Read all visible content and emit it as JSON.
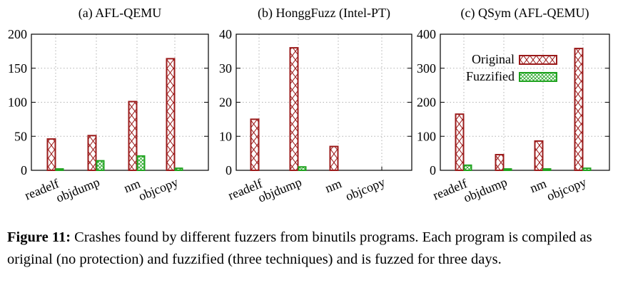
{
  "chart_data": [
    {
      "type": "bar",
      "title": "(a) AFL-QEMU",
      "categories": [
        "readelf",
        "objdump",
        "nm",
        "objcopy"
      ],
      "ylim": [
        0,
        200
      ],
      "yticks": [
        "0",
        "50",
        "100",
        "150",
        "200"
      ],
      "series": [
        {
          "name": "Original",
          "values": [
            46,
            51,
            101,
            164
          ]
        },
        {
          "name": "Fuzzified",
          "values": [
            2,
            14,
            21,
            3
          ]
        }
      ],
      "grid": true
    },
    {
      "type": "bar",
      "title": "(b) HonggFuzz (Intel-PT)",
      "categories": [
        "readelf",
        "objdump",
        "nm",
        "objcopy"
      ],
      "ylim": [
        0,
        40
      ],
      "yticks": [
        "0",
        "10",
        "20",
        "30",
        "40"
      ],
      "series": [
        {
          "name": "Original",
          "values": [
            15,
            36,
            7,
            0
          ]
        },
        {
          "name": "Fuzzified",
          "values": [
            0,
            1,
            0,
            0
          ]
        }
      ],
      "grid": true
    },
    {
      "type": "bar",
      "title": "(c) QSym (AFL-QEMU)",
      "categories": [
        "readelf",
        "objdump",
        "nm",
        "objcopy"
      ],
      "ylim": [
        0,
        400
      ],
      "yticks": [
        "0",
        "100",
        "200",
        "300",
        "400"
      ],
      "series": [
        {
          "name": "Original",
          "values": [
            165,
            46,
            86,
            358
          ]
        },
        {
          "name": "Fuzzified",
          "values": [
            15,
            4,
            4,
            6
          ]
        }
      ],
      "legend": [
        "Original",
        "Fuzzified"
      ],
      "legend_position": "top-right",
      "grid": true
    }
  ],
  "colors": {
    "original": "#9b1b1b",
    "fuzzified": "#1fa31f"
  },
  "caption": {
    "label": "Figure 11:",
    "text": "Crashes found by different fuzzers from binutils programs. Each program is compiled as original (no protection) and fuzzified (three techniques) and is fuzzed for three days."
  }
}
